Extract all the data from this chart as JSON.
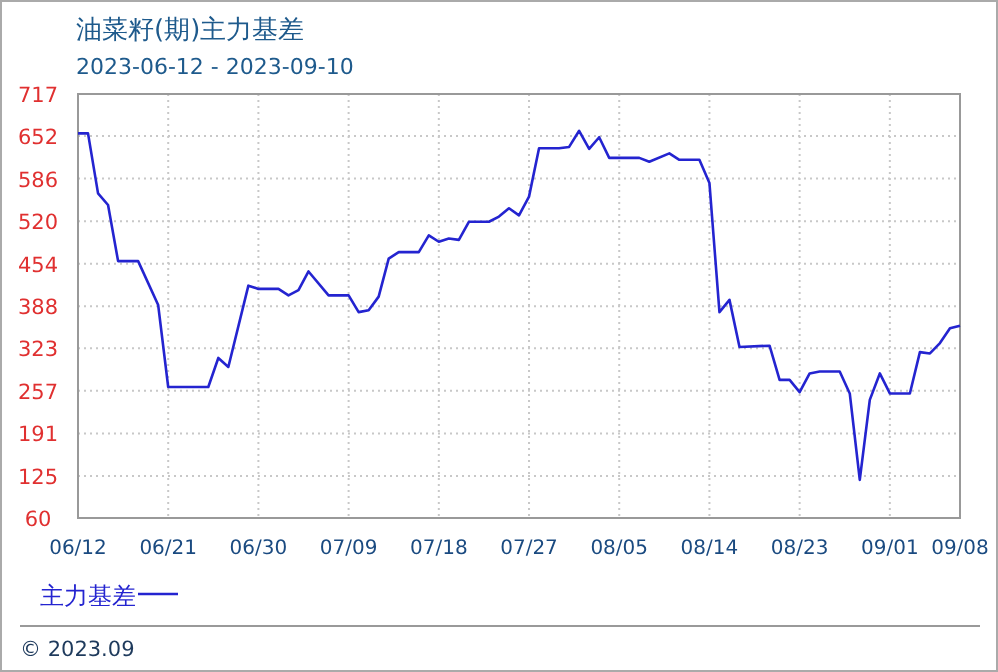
{
  "chart_data": {
    "type": "line",
    "title": "油菜籽(期)主力基差",
    "subtitle": "2023-06-12 - 2023-09-10",
    "x": [
      "--06-12",
      "--06-13",
      "--06-14",
      "--06-15",
      "--06-16",
      "--06-18",
      "--06-20",
      "--06-21",
      "--06-25",
      "--06-26",
      "--06-27",
      "--06-29",
      "--06-30",
      "--07-02",
      "--07-03",
      "--07-04",
      "--07-05",
      "--07-07",
      "--07-09",
      "--07-10",
      "--07-11",
      "--07-12",
      "--07-13",
      "--07-14",
      "--07-16",
      "--07-17",
      "--07-18",
      "--07-19",
      "--07-20",
      "--07-21",
      "--07-23",
      "--07-24",
      "--07-25",
      "--07-26",
      "--07-27",
      "--07-28",
      "--07-30",
      "--07-31",
      "--08-01",
      "--08-02",
      "--08-03",
      "--08-04",
      "--08-07",
      "--08-08",
      "--08-10",
      "--08-11",
      "--08-13",
      "--08-14",
      "--08-15",
      "--08-16",
      "--08-17",
      "--08-20",
      "--08-21",
      "--08-22",
      "--08-23",
      "--08-24",
      "--08-25",
      "--08-27",
      "--08-28",
      "--08-29",
      "--08-30",
      "--08-31",
      "--09-01",
      "--09-03",
      "--09-04",
      "--09-05",
      "--09-06",
      "--09-07",
      "--09-08"
    ],
    "series": [
      {
        "name": "主力基差",
        "color": "#2424d0",
        "values": [
          656,
          656,
          563,
          545,
          458,
          458,
          390,
          263,
          263,
          308,
          294,
          420,
          415,
          415,
          405,
          413,
          442,
          405,
          405,
          379,
          382,
          403,
          462,
          472,
          472,
          498,
          488,
          493,
          491,
          519,
          519,
          527,
          540,
          529,
          558,
          633,
          633,
          635,
          660,
          632,
          650,
          618,
          618,
          612,
          625,
          615,
          615,
          579,
          379,
          398,
          325,
          327,
          274,
          274,
          255,
          284,
          287,
          287,
          253,
          119,
          243,
          284,
          253,
          253,
          317,
          315,
          331,
          354,
          358
        ]
      }
    ],
    "xlim": [
      "--06-12",
      "--09-08"
    ],
    "xticks": [
      {
        "value": "--06-12",
        "label": "06/12"
      },
      {
        "value": "--06-21",
        "label": "06/21"
      },
      {
        "value": "--06-30",
        "label": "06/30"
      },
      {
        "value": "--07-09",
        "label": "07/09"
      },
      {
        "value": "--07-18",
        "label": "07/18"
      },
      {
        "value": "--07-27",
        "label": "07/27"
      },
      {
        "value": "--08-05",
        "label": "08/05"
      },
      {
        "value": "--08-14",
        "label": "08/14"
      },
      {
        "value": "--08-23",
        "label": "08/23"
      },
      {
        "value": "--09-01",
        "label": "09/01"
      },
      {
        "value": "--09-08",
        "label": "09/08"
      }
    ],
    "ylim": [
      60,
      717
    ],
    "yticks": [
      60,
      125,
      191,
      257,
      323,
      388,
      454,
      520,
      586,
      652,
      717
    ],
    "grid": true,
    "legend": "bottom left",
    "marker": "none",
    "line_style": "solid",
    "annotations": [
      "© 2023.09"
    ]
  }
}
